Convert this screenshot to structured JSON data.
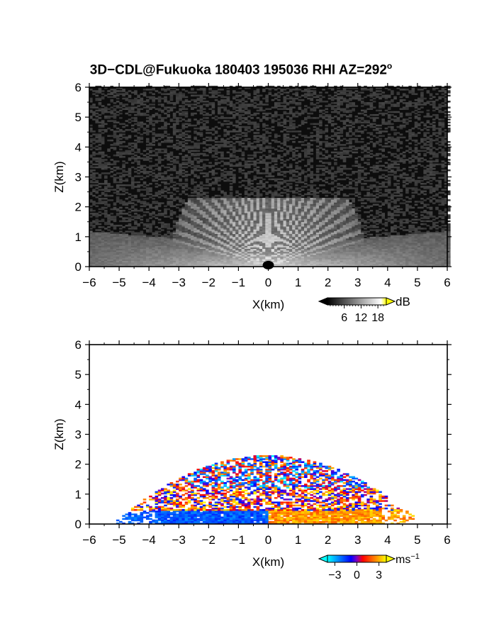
{
  "figure_title": {
    "main": "3D−CDL@Fukuoka 180403 195036 RHI AZ=292",
    "superscript": "o"
  },
  "chart_data": [
    {
      "type": "heatmap",
      "panel": "top",
      "quantity": "SNR",
      "xlabel": "X(km)",
      "ylabel": "Z(km)",
      "xlim": [
        -6,
        6
      ],
      "ylim": [
        0,
        6
      ],
      "x_ticks": [
        "−6",
        "−5",
        "−4",
        "−3",
        "−2",
        "−1",
        "0",
        "1",
        "2",
        "3",
        "4",
        "5",
        "6"
      ],
      "y_ticks": [
        "0",
        "1",
        "2",
        "3",
        "4",
        "5",
        "6"
      ],
      "colorbar": {
        "unit": "dB",
        "tick_labels": [
          "6",
          "12",
          "18"
        ],
        "tick_values": [
          6,
          12,
          18
        ],
        "range": [
          0,
          21
        ],
        "colors": [
          "#000000",
          "#1a1a1a",
          "#333333",
          "#4d4d4d",
          "#666666",
          "#808080",
          "#999999",
          "#b3b3b3",
          "#cccccc",
          "#e6e6e6",
          "#ffffff",
          "#ffff00"
        ]
      },
      "notes": "RHI scan: bright radial beams between about −3.5 and 3.5 km, reaching up to ~2.2 km altitude; surface returns extend to ±6 km; dark noise aloft"
    },
    {
      "type": "heatmap",
      "panel": "bottom",
      "quantity": "radial velocity",
      "xlabel": "X(km)",
      "ylabel": "Z(km)",
      "xlim": [
        -6,
        6
      ],
      "ylim": [
        0,
        6
      ],
      "x_ticks": [
        "−6",
        "−5",
        "−4",
        "−3",
        "−2",
        "−1",
        "0",
        "1",
        "2",
        "3",
        "4",
        "5",
        "6"
      ],
      "y_ticks": [
        "0",
        "1",
        "2",
        "3",
        "4",
        "5",
        "6"
      ],
      "colorbar": {
        "unit": "ms",
        "unit_exponent": "−1",
        "tick_labels": [
          "−3",
          "0",
          "3"
        ],
        "tick_values": [
          -3,
          0,
          3
        ],
        "range": [
          -4,
          4
        ],
        "colors": [
          "#00ffff",
          "#00bfff",
          "#0080ff",
          "#0040ff",
          "#0000ff",
          "#8000c0",
          "#ff0000",
          "#ff4000",
          "#ff8000",
          "#ffbf00",
          "#ffff00"
        ]
      },
      "notes": "Velocity returns confined below ~2.3 km between about −5.5 and 5 km; cyan/blue (negative) near the surface left of 0 and aloft, red/yellow (positive) near the surface right of 0"
    }
  ]
}
